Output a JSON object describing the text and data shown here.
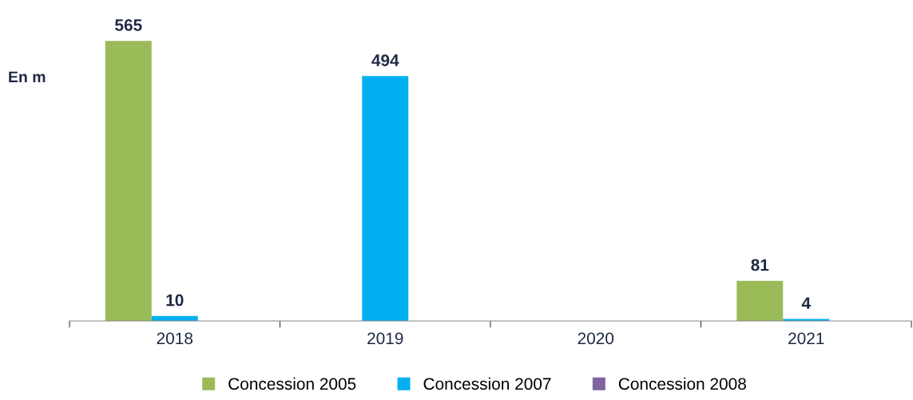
{
  "chart_data": {
    "type": "bar",
    "ylabel": "En m",
    "categories": [
      "2018",
      "2019",
      "2020",
      "2021"
    ],
    "series": [
      {
        "name": "Concession 2005",
        "color": "#9bbb59",
        "values": [
          565,
          null,
          null,
          81
        ]
      },
      {
        "name": "Concession 2007",
        "color": "#00b0f0",
        "values": [
          10,
          494,
          null,
          4
        ]
      },
      {
        "name": "Concession 2008",
        "color": "#8064a2",
        "values": [
          null,
          null,
          null,
          null
        ]
      }
    ],
    "data_labels": true,
    "legend": "bottom",
    "grid": false
  }
}
